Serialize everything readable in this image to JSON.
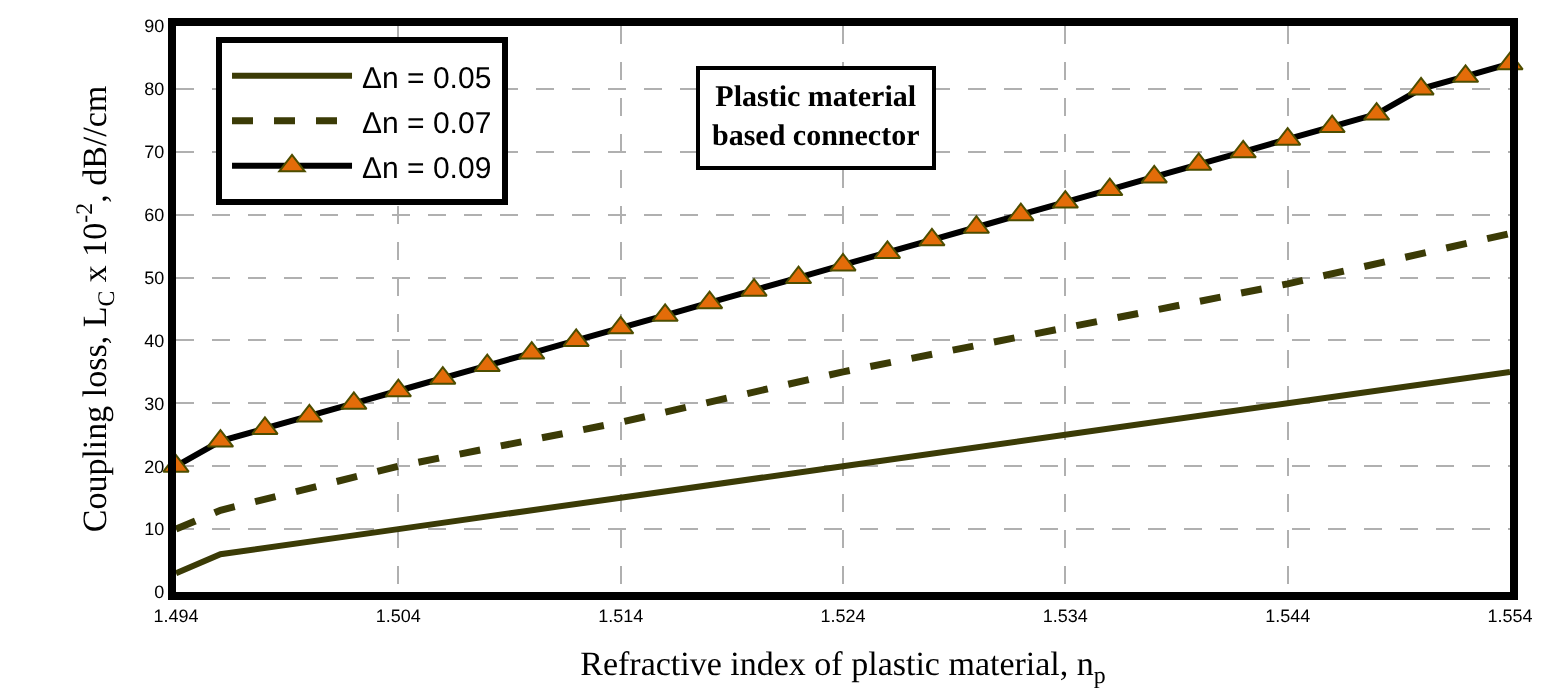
{
  "chart_data": {
    "type": "line",
    "xlabel": "Refractive index of plastic material, n$_{p}$",
    "ylabel": "Coupling loss, L$_{C}$ x 10$^{-2}$, dB//cm",
    "annotations": [
      "Plastic material\nbased connector"
    ],
    "xlim": [
      1.494,
      1.554
    ],
    "xticks": [
      1.494,
      1.504,
      1.514,
      1.524,
      1.534,
      1.544,
      1.554
    ],
    "ylim": [
      0,
      90
    ],
    "yticks": [
      0,
      10,
      20,
      30,
      40,
      50,
      60,
      70,
      80,
      90
    ],
    "grid": true,
    "legend": "top left",
    "series": [
      {
        "name": "Δn = 0.05",
        "color": "#3b3b06",
        "line_style": "solid",
        "marker": "none",
        "x": [
          1.494,
          1.496,
          1.504,
          1.514,
          1.524,
          1.534,
          1.544,
          1.554
        ],
        "values": [
          3,
          6,
          10,
          15,
          20,
          25,
          30,
          35
        ]
      },
      {
        "name": "Δn = 0.07",
        "color": "#3b3b06",
        "line_style": "dashed",
        "marker": "none",
        "x": [
          1.494,
          1.496,
          1.504,
          1.514,
          1.524,
          1.534,
          1.544,
          1.554
        ],
        "values": [
          10,
          13,
          20,
          27,
          35,
          42,
          49,
          57
        ]
      },
      {
        "name": "Δn = 0.09",
        "color": "#000000",
        "line_style": "solid",
        "marker": "triangle",
        "x": [
          1.494,
          1.496,
          1.498,
          1.5,
          1.502,
          1.504,
          1.506,
          1.508,
          1.51,
          1.512,
          1.514,
          1.516,
          1.518,
          1.52,
          1.522,
          1.524,
          1.526,
          1.528,
          1.53,
          1.532,
          1.534,
          1.536,
          1.538,
          1.54,
          1.542,
          1.544,
          1.546,
          1.548,
          1.55,
          1.552,
          1.554
        ],
        "values": [
          20,
          24,
          26,
          28,
          30,
          32,
          34,
          36,
          38,
          40,
          42,
          44,
          46,
          48,
          50,
          52,
          54,
          56,
          58,
          60,
          62,
          64,
          66,
          68,
          70,
          72,
          74,
          76,
          80,
          82,
          84
        ]
      }
    ]
  }
}
